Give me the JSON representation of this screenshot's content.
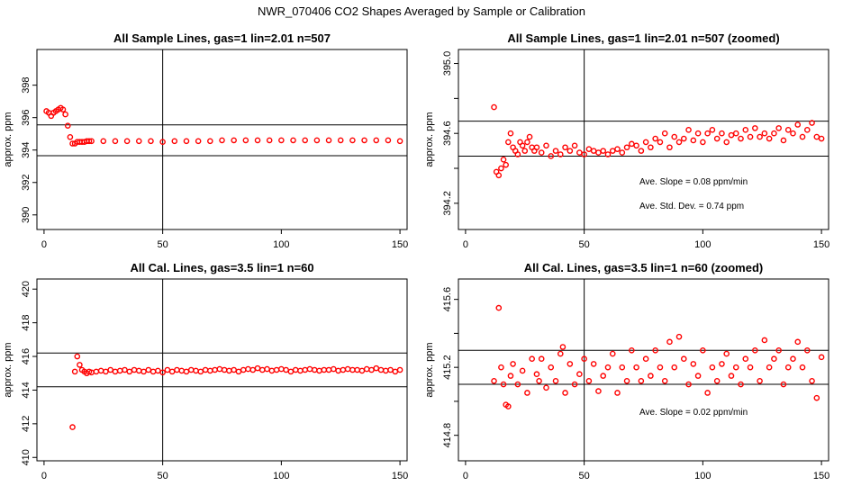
{
  "title": "NWR_070406  CO2 Shapes Averaged by Sample or Calibration",
  "chart_data": [
    {
      "type": "scatter",
      "title": "All Sample Lines, gas=1 lin=2.01 n=507",
      "xlabel": "",
      "ylabel": "approx. ppm",
      "xlim": [
        -3,
        153
      ],
      "ylim": [
        389.1,
        400.2
      ],
      "xticks": [
        0,
        50,
        100,
        150
      ],
      "yticks": [
        390,
        392,
        394,
        396,
        398
      ],
      "vline": 50,
      "hlines": [
        393.65,
        395.55
      ],
      "annotations": [],
      "series": [
        {
          "color": "#ff0000",
          "x": [
            1,
            2,
            3,
            4,
            5,
            6,
            7,
            8,
            9,
            10,
            11,
            12,
            13,
            14,
            15,
            16,
            17,
            18,
            19,
            20,
            25,
            30,
            35,
            40,
            45,
            50,
            55,
            60,
            65,
            70,
            75,
            80,
            85,
            90,
            95,
            100,
            105,
            110,
            115,
            120,
            125,
            130,
            135,
            140,
            145,
            150
          ],
          "y": [
            396.4,
            396.3,
            396.1,
            396.3,
            396.4,
            396.5,
            396.6,
            396.5,
            396.2,
            395.5,
            394.8,
            394.4,
            394.4,
            394.5,
            394.5,
            394.5,
            394.5,
            394.55,
            394.55,
            394.55,
            394.55,
            394.55,
            394.55,
            394.55,
            394.55,
            394.5,
            394.55,
            394.55,
            394.55,
            394.55,
            394.6,
            394.6,
            394.6,
            394.6,
            394.6,
            394.6,
            394.6,
            394.6,
            394.6,
            394.6,
            394.6,
            394.6,
            394.6,
            394.6,
            394.6,
            394.55
          ]
        }
      ]
    },
    {
      "type": "scatter",
      "title": "All Sample Lines, gas=1 lin=2.01 n=507 (zoomed)",
      "xlabel": "",
      "ylabel": "approx. ppm",
      "xlim": [
        -3,
        153
      ],
      "ylim": [
        394.05,
        395.08
      ],
      "xticks": [
        0,
        50,
        100,
        150
      ],
      "yticks": [
        394.2,
        394.4,
        394.6,
        394.8,
        395.0
      ],
      "ytick_labels": [
        "394.2",
        "",
        "394.6",
        "",
        "395.0"
      ],
      "vline": 50,
      "hlines": [
        394.47,
        394.67
      ],
      "annotations": [
        "Ave. Slope =  0.08  ppm/min",
        "Ave. Std. Dev. =  0.74  ppm"
      ],
      "series": [
        {
          "color": "#ff0000",
          "x": [
            12,
            13,
            14,
            15,
            16,
            17,
            18,
            19,
            20,
            21,
            22,
            23,
            24,
            25,
            26,
            27,
            28,
            29,
            30,
            32,
            34,
            36,
            38,
            40,
            42,
            44,
            46,
            48,
            50,
            52,
            54,
            56,
            58,
            60,
            62,
            64,
            66,
            68,
            70,
            72,
            74,
            76,
            78,
            80,
            82,
            84,
            86,
            88,
            90,
            92,
            94,
            96,
            98,
            100,
            102,
            104,
            106,
            108,
            110,
            112,
            114,
            116,
            118,
            120,
            122,
            124,
            126,
            128,
            130,
            132,
            134,
            136,
            138,
            140,
            142,
            144,
            146,
            148,
            150
          ],
          "y": [
            394.75,
            394.38,
            394.36,
            394.4,
            394.45,
            394.42,
            394.55,
            394.6,
            394.52,
            394.5,
            394.48,
            394.55,
            394.53,
            394.5,
            394.55,
            394.58,
            394.52,
            394.5,
            394.52,
            394.49,
            394.53,
            394.47,
            394.5,
            394.48,
            394.52,
            394.5,
            394.53,
            394.49,
            394.48,
            394.51,
            394.5,
            394.49,
            394.5,
            394.48,
            394.5,
            394.51,
            394.49,
            394.52,
            394.54,
            394.53,
            394.5,
            394.55,
            394.52,
            394.57,
            394.55,
            394.6,
            394.52,
            394.58,
            394.55,
            394.57,
            394.62,
            394.56,
            394.6,
            394.55,
            394.6,
            394.62,
            394.57,
            394.6,
            394.55,
            394.59,
            394.6,
            394.57,
            394.62,
            394.58,
            394.63,
            394.58,
            394.6,
            394.57,
            394.6,
            394.63,
            394.56,
            394.62,
            394.6,
            394.65,
            394.58,
            394.62,
            394.66,
            394.58,
            394.57
          ]
        }
      ]
    },
    {
      "type": "scatter",
      "title": "All Cal. Lines, gas=3.5 lin=1 n=60",
      "xlabel": "",
      "ylabel": "approx. ppm",
      "xlim": [
        -3,
        153
      ],
      "ylim": [
        409.8,
        420.6
      ],
      "xticks": [
        0,
        50,
        100,
        150
      ],
      "yticks": [
        410,
        412,
        414,
        416,
        418,
        420
      ],
      "vline": 50,
      "hlines": [
        414.2,
        416.2
      ],
      "annotations": [],
      "series": [
        {
          "color": "#ff0000",
          "x": [
            12,
            13,
            14,
            15,
            16,
            17,
            18,
            19,
            20,
            22,
            24,
            26,
            28,
            30,
            32,
            34,
            36,
            38,
            40,
            42,
            44,
            46,
            48,
            50,
            52,
            54,
            56,
            58,
            60,
            62,
            64,
            66,
            68,
            70,
            72,
            74,
            76,
            78,
            80,
            82,
            84,
            86,
            88,
            90,
            92,
            94,
            96,
            98,
            100,
            102,
            104,
            106,
            108,
            110,
            112,
            114,
            116,
            118,
            120,
            122,
            124,
            126,
            128,
            130,
            132,
            134,
            136,
            138,
            140,
            142,
            144,
            146,
            148,
            150
          ],
          "y": [
            411.8,
            415.1,
            416.0,
            415.5,
            415.2,
            415.1,
            415.0,
            415.1,
            415.05,
            415.1,
            415.15,
            415.1,
            415.2,
            415.1,
            415.15,
            415.2,
            415.1,
            415.2,
            415.15,
            415.1,
            415.2,
            415.1,
            415.15,
            415.05,
            415.2,
            415.1,
            415.2,
            415.15,
            415.1,
            415.2,
            415.15,
            415.1,
            415.2,
            415.15,
            415.2,
            415.25,
            415.2,
            415.15,
            415.2,
            415.1,
            415.2,
            415.25,
            415.2,
            415.3,
            415.2,
            415.25,
            415.15,
            415.2,
            415.25,
            415.2,
            415.1,
            415.2,
            415.15,
            415.2,
            415.25,
            415.2,
            415.15,
            415.2,
            415.2,
            415.25,
            415.15,
            415.2,
            415.25,
            415.2,
            415.2,
            415.15,
            415.25,
            415.2,
            415.3,
            415.2,
            415.15,
            415.2,
            415.1,
            415.2
          ]
        }
      ]
    },
    {
      "type": "scatter",
      "title": "All Cal. Lines, gas=3.5 lin=1 n=60 (zoomed)",
      "xlabel": "",
      "ylabel": "approx. ppm",
      "xlim": [
        -3,
        153
      ],
      "ylim": [
        414.65,
        415.72
      ],
      "xticks": [
        0,
        50,
        100,
        150
      ],
      "yticks": [
        414.8,
        415.0,
        415.2,
        415.4,
        415.6
      ],
      "ytick_labels": [
        "414.8",
        "",
        "415.2",
        "",
        "415.6"
      ],
      "vline": 50,
      "hlines": [
        415.1,
        415.3
      ],
      "annotations": [
        "Ave. Slope =  0.02  ppm/min"
      ],
      "series": [
        {
          "color": "#ff0000",
          "x": [
            12,
            14,
            15,
            16,
            17,
            18,
            19,
            20,
            22,
            24,
            26,
            28,
            30,
            31,
            32,
            34,
            36,
            38,
            40,
            41,
            42,
            44,
            46,
            48,
            50,
            52,
            54,
            56,
            58,
            60,
            62,
            64,
            66,
            68,
            70,
            72,
            74,
            76,
            78,
            80,
            82,
            84,
            86,
            88,
            90,
            92,
            94,
            96,
            98,
            100,
            102,
            104,
            106,
            108,
            110,
            112,
            114,
            116,
            118,
            120,
            122,
            124,
            126,
            128,
            130,
            132,
            134,
            136,
            138,
            140,
            142,
            144,
            146,
            148,
            150
          ],
          "y": [
            415.12,
            415.55,
            415.2,
            415.1,
            414.98,
            414.97,
            415.15,
            415.22,
            415.1,
            415.18,
            415.05,
            415.25,
            415.16,
            415.12,
            415.25,
            415.08,
            415.2,
            415.12,
            415.28,
            415.32,
            415.05,
            415.22,
            415.1,
            415.16,
            415.25,
            415.12,
            415.22,
            415.06,
            415.15,
            415.2,
            415.28,
            415.05,
            415.2,
            415.12,
            415.3,
            415.2,
            415.12,
            415.25,
            415.15,
            415.3,
            415.2,
            415.12,
            415.35,
            415.2,
            415.38,
            415.25,
            415.1,
            415.22,
            415.15,
            415.3,
            415.05,
            415.2,
            415.12,
            415.22,
            415.28,
            415.15,
            415.2,
            415.1,
            415.25,
            415.2,
            415.3,
            415.12,
            415.36,
            415.2,
            415.25,
            415.3,
            415.1,
            415.2,
            415.25,
            415.35,
            415.2,
            415.3,
            415.12,
            415.02,
            415.26
          ]
        }
      ]
    }
  ]
}
